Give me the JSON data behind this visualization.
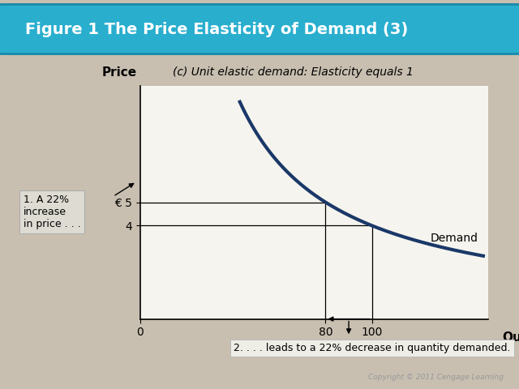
{
  "title": "Figure 1 The Price Elasticity of Demand (3)",
  "title_bg_color": "#29AECE",
  "title_text_color": "#FFFFFF",
  "subtitle": "(c) Unit elastic demand: Elasticity equals 1",
  "bg_color": "#C8BFB0",
  "plot_bg_color": "#F5F4EE",
  "demand_color": "#1A3868",
  "demand_label": "Demand",
  "xlabel": "Quantity",
  "ylabel": "Price",
  "xlim": [
    0,
    150
  ],
  "ylim": [
    0,
    10
  ],
  "x_ticks": [
    0,
    80,
    100
  ],
  "y_ticks": [
    4,
    5
  ],
  "y_tick_labels": [
    "4",
    "€ 5"
  ],
  "price1": 4,
  "price2": 5,
  "qty1": 100,
  "qty2": 80,
  "annotation1": "1. A 22%\nincrease\nin price . . .",
  "annotation2": "2. . . . leads to a 22% decrease in quantity demanded.",
  "copyright": "Copyright © 2011 Cengage Learning",
  "curve_k": 400,
  "curve_x_start": 43,
  "curve_x_end": 148
}
